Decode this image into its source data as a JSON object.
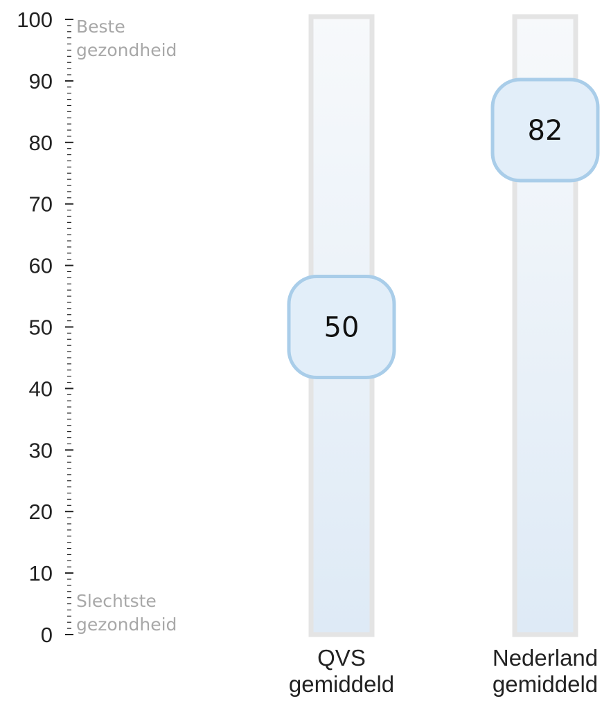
{
  "chart_data": {
    "type": "bar",
    "orientation": "vertical-scale",
    "title": "",
    "xlabel": "",
    "ylabel": "",
    "ylim": [
      0,
      100
    ],
    "yticks": [
      0,
      10,
      20,
      30,
      40,
      50,
      60,
      70,
      80,
      90,
      100
    ],
    "minor_tick_step": 1,
    "grid": false,
    "legend": "none",
    "scale_labels": {
      "top": [
        "Beste",
        "gezondheid"
      ],
      "bottom": [
        "Slechtste",
        "gezondheid"
      ]
    },
    "categories": [
      [
        "QVS",
        "gemiddeld"
      ],
      [
        "Nederland",
        "gemiddeld"
      ]
    ],
    "values": [
      50,
      82
    ],
    "value_labels": [
      "50",
      "82"
    ],
    "colors": {
      "bar_top": "#f7f9fb",
      "bar_bottom": "#deeaf6",
      "bar_border": "#e4e4e4",
      "marker_fill": "#e2eef9",
      "marker_border": "#a9cde9",
      "axis": "#222222",
      "scale_text": "#a8a8a8"
    }
  }
}
